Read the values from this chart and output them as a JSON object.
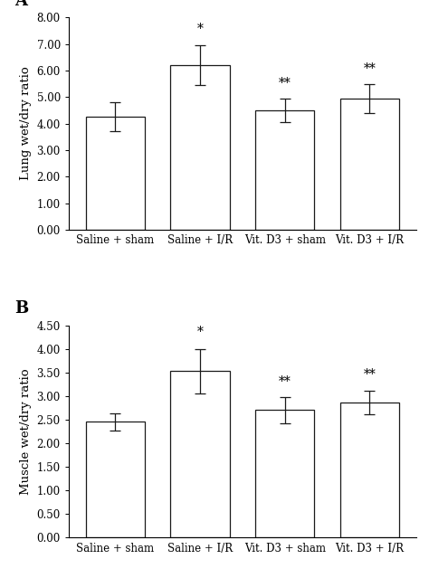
{
  "panel_A": {
    "label": "A",
    "categories": [
      "Saline + sham",
      "Saline + I/R",
      "Vit. D3 + sham",
      "Vit. D3 + I/R"
    ],
    "values": [
      4.25,
      6.2,
      4.5,
      4.95
    ],
    "errors": [
      0.55,
      0.75,
      0.45,
      0.55
    ],
    "significance": [
      "",
      "*",
      "**",
      "**"
    ],
    "ylabel": "Lung wet/dry ratio",
    "ylim": [
      0.0,
      8.0
    ],
    "yticks": [
      0.0,
      1.0,
      2.0,
      3.0,
      4.0,
      5.0,
      6.0,
      7.0,
      8.0
    ],
    "sig_offsets": [
      0.0,
      0.12,
      0.08,
      0.1
    ]
  },
  "panel_B": {
    "label": "B",
    "categories": [
      "Saline + sham",
      "Saline + I/R",
      "Vit. D3 + sham",
      "Vit. D3 + I/R"
    ],
    "values": [
      2.45,
      3.53,
      2.7,
      2.87
    ],
    "errors": [
      0.18,
      0.47,
      0.27,
      0.25
    ],
    "significance": [
      "",
      "*",
      "**",
      "**"
    ],
    "ylabel": "Muscle wet/dry ratio",
    "ylim": [
      0.0,
      4.5
    ],
    "yticks": [
      0.0,
      0.5,
      1.0,
      1.5,
      2.0,
      2.5,
      3.0,
      3.5,
      4.0,
      4.5
    ],
    "sig_offsets": [
      0.0,
      0.08,
      0.06,
      0.06
    ]
  },
  "bar_color": "#ffffff",
  "bar_edgecolor": "#1a1a1a",
  "bar_width": 0.7,
  "capsize": 4,
  "font_family": "DejaVu Serif",
  "tick_fontsize": 8.5,
  "label_fontsize": 9.5,
  "sig_fontsize": 10,
  "panel_label_fontsize": 13
}
